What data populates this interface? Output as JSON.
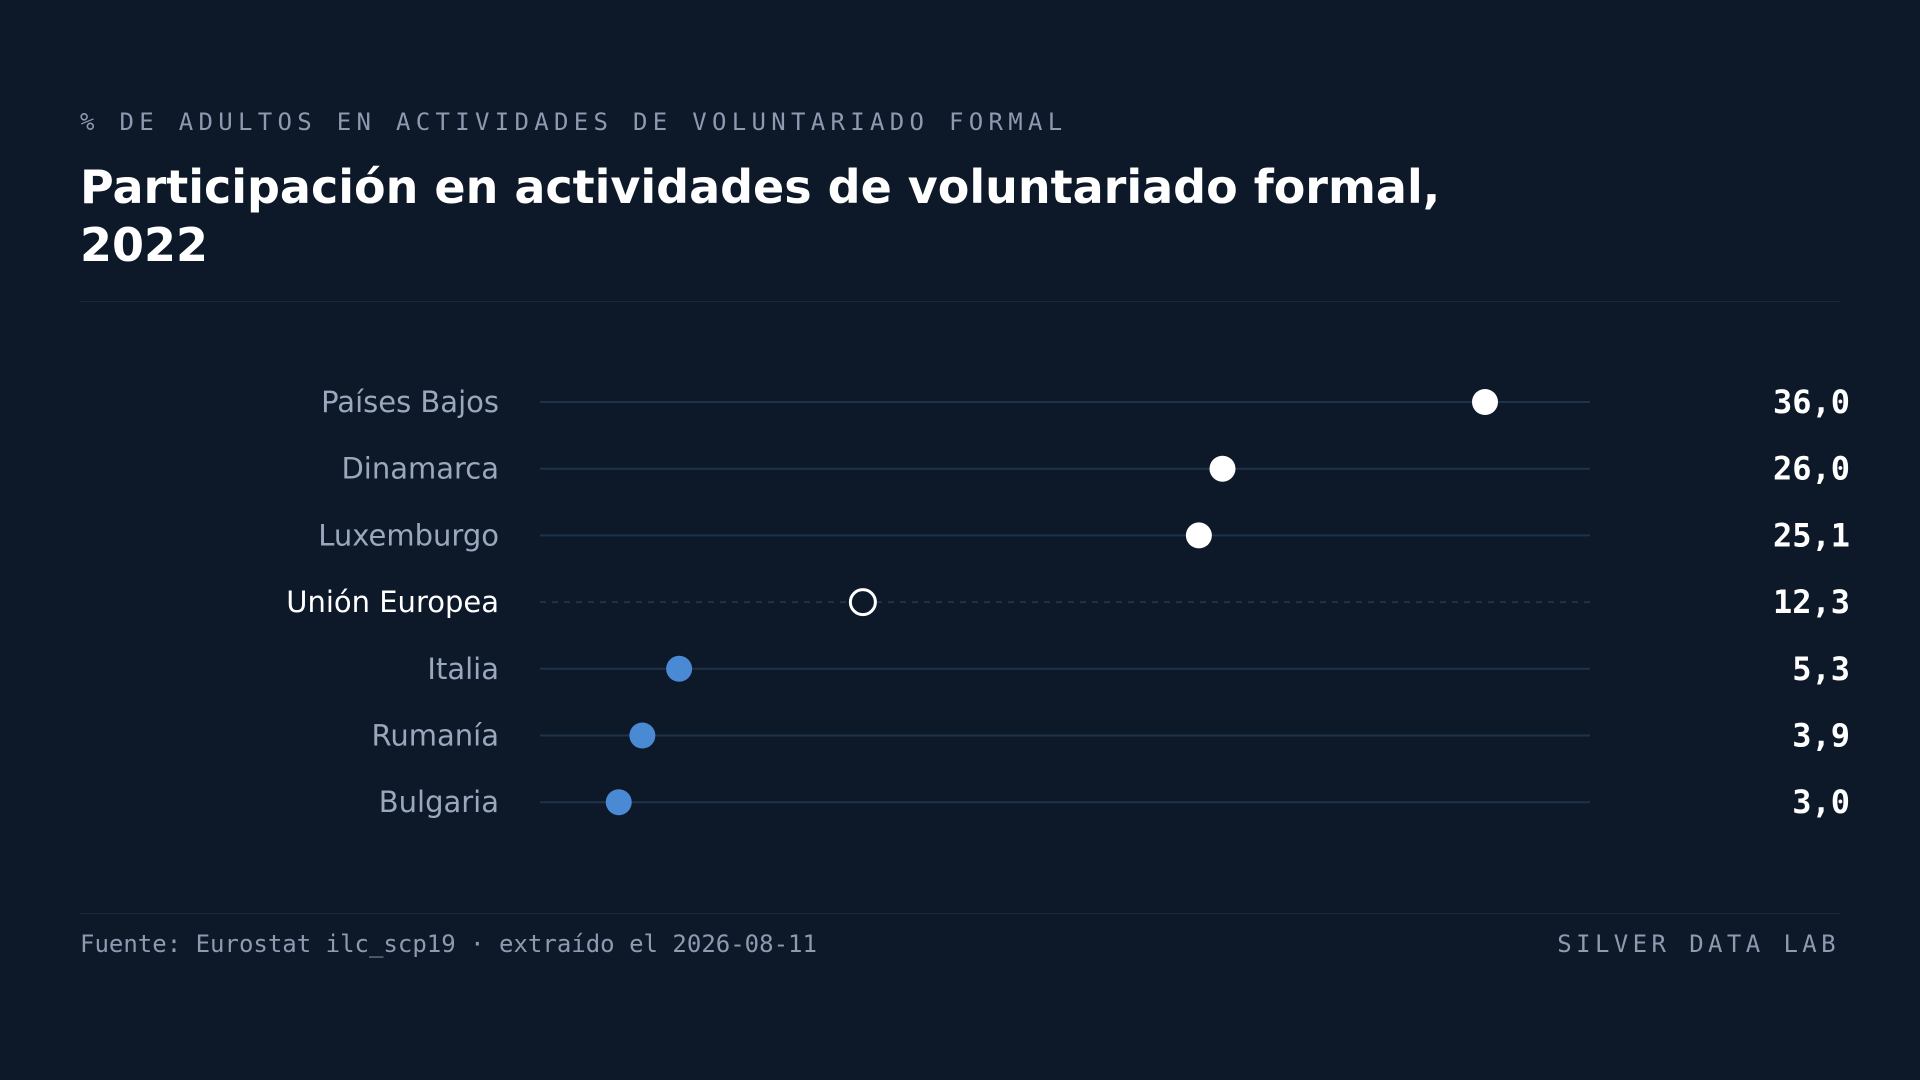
{
  "header": {
    "kicker": "% DE ADULTOS EN ACTIVIDADES DE VOLUNTARIADO FORMAL",
    "title": "Participación en actividades de voluntariado formal, 2022"
  },
  "footer": {
    "source": "Fuente: Eurostat ilc_scp19 · extraído el 2026-08-11",
    "brand": "SILVER DATA LAB"
  },
  "colors": {
    "background": "#0d1829",
    "high": "#ffffff",
    "low": "#4a8ad4",
    "reference_label": "#ffffff",
    "label": "#9aa8bd",
    "track": "#1e3349"
  },
  "chart_data": {
    "type": "dot",
    "title": "Participación en actividades de voluntariado formal, 2022",
    "subtitle": "% DE ADULTOS EN ACTIVIDADES DE VOLUNTARIADO FORMAL",
    "xlim": [
      0,
      40
    ],
    "grid": false,
    "legend": "none",
    "categories": [
      "Países Bajos",
      "Dinamarca",
      "Luxemburgo",
      "Unión Europea",
      "Italia",
      "Rumanía",
      "Bulgaria"
    ],
    "values": [
      36.0,
      26.0,
      25.1,
      12.3,
      5.3,
      3.9,
      3.0
    ],
    "value_labels": [
      "36,0",
      "26,0",
      "25,1",
      "12,3",
      "5,3",
      "3,9",
      "3,0"
    ],
    "groups": [
      "high",
      "high",
      "high",
      "reference",
      "low",
      "low",
      "low"
    ]
  }
}
